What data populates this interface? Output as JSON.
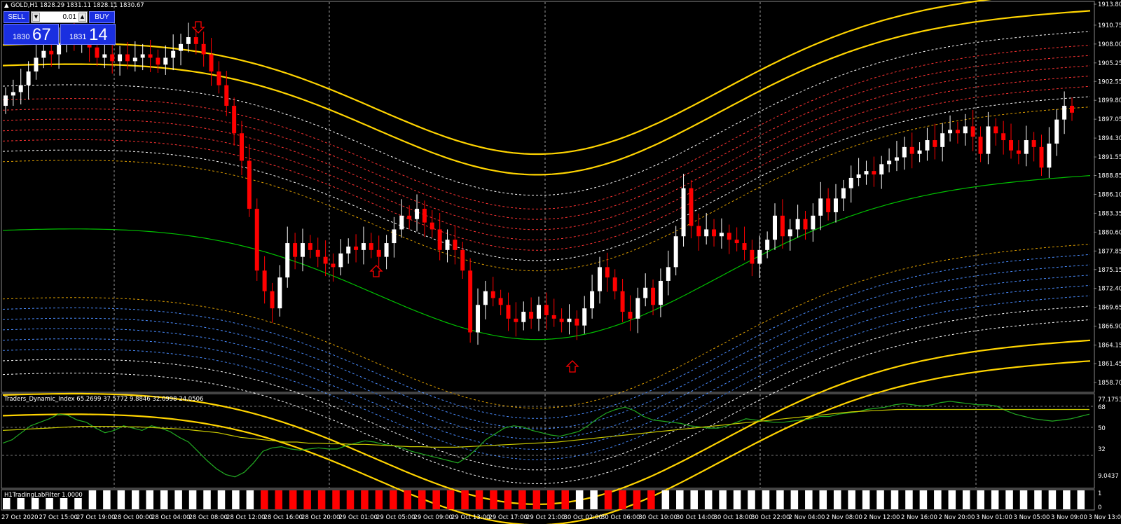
{
  "symbol_header": "▲ GOLD,H1  1828.29 1831.11 1828.11 1830.67",
  "trade_panel": {
    "sell_label": "SELL",
    "buy_label": "BUY",
    "lot": "0.01",
    "sell_small": "1830",
    "sell_big": "67",
    "buy_small": "1831",
    "buy_big": "14"
  },
  "indicator1_label": "Traders_Dynamic_Index 65.2699 37.5772 9.8846 32.0998 24.0506",
  "indicator2_label": "H1TradingLabFilter 1.0000",
  "colors": {
    "bull_candle": "#ffffff",
    "bear_candle": "#ff0000",
    "envelope": "#ffd400",
    "ma": "#00c000",
    "tdi_green": "#22aa22",
    "tdi_yellow": "#c8c800",
    "arrow": "#ff0000"
  },
  "chart_data": [
    {
      "type": "candlestick",
      "ylim": [
        1858.7,
        1913.8
      ],
      "price_ticks": [
        "1913.80",
        "1910.75",
        "1908.00",
        "1905.25",
        "1902.55",
        "1899.80",
        "1897.05",
        "1894.30",
        "1891.55",
        "1888.85",
        "1886.10",
        "1883.35",
        "1880.60",
        "1877.85",
        "1875.15",
        "1872.40",
        "1869.65",
        "1866.90",
        "1864.15",
        "1861.45",
        "1858.70"
      ],
      "time_ticks": [
        "27 Oct 2020",
        "27 Oct 15:00",
        "27 Oct 19:00",
        "28 Oct 00:00",
        "28 Oct 04:00",
        "28 Oct 08:00",
        "28 Oct 12:00",
        "28 Oct 16:00",
        "28 Oct 20:00",
        "29 Oct 01:00",
        "29 Oct 05:00",
        "29 Oct 09:00",
        "29 Oct 13:00",
        "29 Oct 17:00",
        "29 Oct 21:00",
        "30 Oct 02:00",
        "30 Oct 06:00",
        "30 Oct 10:00",
        "30 Oct 14:00",
        "30 Oct 18:00",
        "30 Oct 22:00",
        "2 Nov 04:00",
        "2 Nov 08:00",
        "2 Nov 12:00",
        "2 Nov 16:00",
        "2 Nov 20:00",
        "3 Nov 01:00",
        "3 Nov 05:00",
        "3 Nov 09:00",
        "3 Nov 13:00"
      ],
      "close": [
        1900.5,
        1901,
        1902,
        1904,
        1906,
        1907,
        1906.5,
        1908,
        1909,
        1908.5,
        1909,
        1907.5,
        1906,
        1906.5,
        1905.5,
        1906.5,
        1905.5,
        1906,
        1906.5,
        1906,
        1905,
        1906,
        1907,
        1908,
        1909,
        1908,
        1906.5,
        1904,
        1902,
        1899,
        1895,
        1891,
        1884,
        1875,
        1872,
        1869.5,
        1874,
        1879,
        1877,
        1879,
        1878,
        1877,
        1876,
        1875.5,
        1877.5,
        1878.5,
        1878,
        1879,
        1878,
        1877,
        1879,
        1881,
        1883,
        1882.5,
        1884,
        1882,
        1881,
        1878,
        1879.5,
        1878,
        1875,
        1866,
        1870,
        1872,
        1871,
        1870,
        1868,
        1867.5,
        1869,
        1868,
        1870,
        1868.5,
        1868,
        1867.5,
        1868,
        1867,
        1869.5,
        1872,
        1875.5,
        1874,
        1872,
        1869,
        1868,
        1871,
        1872.5,
        1870,
        1873.5,
        1875.5,
        1880,
        1887,
        1881.5,
        1880,
        1881,
        1880,
        1880.5,
        1879.5,
        1879,
        1878,
        1876,
        1878,
        1879.5,
        1883,
        1880,
        1881,
        1882.5,
        1881,
        1883,
        1885.5,
        1883.5,
        1885.5,
        1887,
        1888.5,
        1889,
        1889.5,
        1889,
        1890.5,
        1891,
        1891.5,
        1893,
        1892,
        1892.5,
        1894,
        1893,
        1895,
        1895.5,
        1895,
        1896,
        1894.5,
        1892,
        1896,
        1895,
        1894,
        1892.5,
        1892,
        1894,
        1893,
        1890,
        1893.5,
        1897,
        1899,
        1898
      ]
    },
    {
      "type": "line",
      "title": "Traders_Dynamic_Index",
      "ylim": [
        0,
        77.1753
      ],
      "y_ticks": [
        "77.1753",
        "68",
        "50",
        "32",
        "9.0437"
      ],
      "series": [
        {
          "values": [
            37,
            40,
            46,
            52,
            55,
            58,
            62,
            61,
            57,
            55,
            50,
            46,
            48,
            52,
            50,
            48,
            52,
            50,
            47,
            42,
            38,
            30,
            22,
            15,
            10,
            8,
            12,
            20,
            30,
            33,
            34,
            32,
            31,
            32,
            33,
            32,
            32,
            35,
            37,
            39,
            38,
            36,
            35,
            33,
            30,
            28,
            26,
            24,
            22,
            20,
            25,
            32,
            40,
            45,
            50,
            52,
            51,
            48,
            46,
            44,
            43,
            45,
            47,
            52,
            58,
            63,
            66,
            68,
            65,
            60,
            57,
            56,
            55,
            54,
            52,
            51,
            50,
            50,
            52,
            55,
            58,
            57,
            56,
            55,
            55,
            56,
            57,
            58,
            60,
            60,
            62,
            63,
            64,
            66,
            67,
            68,
            70,
            71,
            70,
            69,
            70,
            72,
            73,
            72,
            71,
            70,
            70,
            69,
            65,
            62,
            60,
            58,
            57,
            56,
            57,
            58,
            60,
            62
          ]
        },
        {
          "values": [
            48,
            48.5,
            49,
            49.5,
            50,
            50.5,
            51,
            51.5,
            51.5,
            51.5,
            51.5,
            51,
            51,
            50.5,
            50,
            49.5,
            49,
            48,
            47,
            46,
            44,
            42,
            41,
            40,
            39,
            38,
            38,
            37,
            37,
            36.5,
            36.5,
            36,
            36,
            35.5,
            35,
            34.5,
            34,
            34,
            33.5,
            33.5,
            33.5,
            34,
            34.5,
            35,
            35.5,
            36,
            36.5,
            37,
            37.5,
            38,
            39,
            40,
            41,
            42,
            43,
            44,
            45,
            46,
            47,
            48,
            49,
            50,
            51,
            52,
            53,
            54,
            55,
            56,
            57,
            58,
            59,
            60,
            61,
            62,
            63,
            64,
            64.5,
            65,
            65.5,
            66,
            66,
            66,
            66,
            66,
            66,
            66,
            66,
            66,
            66,
            66,
            66,
            66,
            66,
            66,
            66,
            66,
            66
          ]
        }
      ]
    },
    {
      "type": "bar",
      "title": "H1TradingLabFilter",
      "ylim": [
        0,
        1
      ],
      "y_ticks": [
        "1",
        "0"
      ]
    }
  ]
}
